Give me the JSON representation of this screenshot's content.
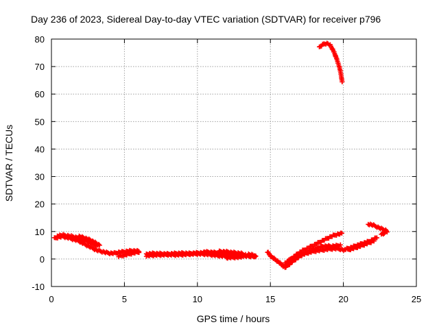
{
  "chart_data": {
    "type": "scatter",
    "title": "Day 236 of 2023, Sidereal Day-to-day VTEC variation (SDTVAR) for receiver p796",
    "xlabel": "GPS time / hours",
    "ylabel": "SDTVAR / TECUs",
    "xlim": [
      0,
      25
    ],
    "ylim": [
      -10,
      80
    ],
    "x_ticks": [
      0,
      5,
      10,
      15,
      20,
      25
    ],
    "y_ticks": [
      -10,
      0,
      10,
      20,
      30,
      40,
      50,
      60,
      70,
      80
    ],
    "grid": true,
    "marker": "+",
    "series": [
      {
        "name": "SDTVAR",
        "color": "#ff0000",
        "segments": [
          [
            [
              0.2,
              7.5
            ],
            [
              0.5,
              8.0
            ],
            [
              0.8,
              8.2
            ],
            [
              1.0,
              7.9
            ],
            [
              1.3,
              7.5
            ],
            [
              1.6,
              7.0
            ],
            [
              1.9,
              6.5
            ],
            [
              2.2,
              5.6
            ],
            [
              2.5,
              4.8
            ],
            [
              2.8,
              4.0
            ],
            [
              3.1,
              3.2
            ],
            [
              3.4,
              2.8
            ],
            [
              3.7,
              2.4
            ],
            [
              4.0,
              2.1
            ],
            [
              4.3,
              2.1
            ],
            [
              4.6,
              2.4
            ],
            [
              4.9,
              2.6
            ],
            [
              5.2,
              2.8
            ],
            [
              5.5,
              3.0
            ],
            [
              5.8,
              2.9
            ],
            [
              6.0,
              2.8
            ]
          ],
          [
            [
              0.4,
              8.5
            ],
            [
              0.8,
              8.7
            ],
            [
              1.2,
              8.4
            ],
            [
              1.6,
              8.0
            ],
            [
              2.0,
              7.4
            ],
            [
              2.4,
              6.6
            ],
            [
              2.8,
              5.6
            ],
            [
              3.1,
              4.8
            ]
          ],
          [
            [
              1.9,
              8.2
            ],
            [
              2.3,
              7.6
            ],
            [
              2.7,
              6.8
            ],
            [
              3.0,
              5.9
            ],
            [
              3.3,
              5.0
            ]
          ],
          [
            [
              4.6,
              1.0
            ],
            [
              5.0,
              1.4
            ],
            [
              5.4,
              1.9
            ],
            [
              5.8,
              2.4
            ],
            [
              6.0,
              2.6
            ]
          ],
          [
            [
              6.5,
              1.8
            ],
            [
              7.0,
              2.0
            ],
            [
              7.5,
              1.9
            ],
            [
              8.0,
              1.8
            ],
            [
              8.5,
              2.0
            ],
            [
              9.0,
              2.1
            ],
            [
              9.5,
              2.0
            ],
            [
              10.0,
              2.2
            ],
            [
              10.5,
              2.3
            ],
            [
              11.0,
              2.3
            ],
            [
              11.5,
              2.0
            ],
            [
              12.0,
              1.8
            ],
            [
              12.5,
              1.5
            ],
            [
              13.0,
              1.2
            ],
            [
              13.5,
              1.0
            ],
            [
              14.0,
              1.0
            ]
          ],
          [
            [
              6.5,
              1.2
            ],
            [
              7.0,
              1.4
            ],
            [
              7.5,
              1.5
            ],
            [
              8.0,
              1.6
            ],
            [
              8.5,
              1.5
            ],
            [
              9.0,
              1.6
            ],
            [
              9.5,
              1.8
            ],
            [
              10.0,
              1.9
            ],
            [
              10.5,
              1.8
            ],
            [
              11.0,
              1.5
            ],
            [
              11.5,
              1.2
            ],
            [
              12.0,
              1.0
            ]
          ],
          [
            [
              10.5,
              2.6
            ],
            [
              11.0,
              2.4
            ],
            [
              11.5,
              2.2
            ],
            [
              12.0,
              2.0
            ],
            [
              12.5,
              1.8
            ]
          ],
          [
            [
              11.5,
              2.7
            ],
            [
              12.0,
              2.6
            ],
            [
              12.5,
              2.3
            ],
            [
              13.0,
              2.0
            ],
            [
              13.3,
              1.5
            ]
          ],
          [
            [
              12.0,
              0.5
            ],
            [
              12.5,
              0.6
            ],
            [
              13.0,
              0.7
            ]
          ],
          [
            [
              13.5,
              1.7
            ],
            [
              13.8,
              1.4
            ],
            [
              14.0,
              0.8
            ]
          ],
          [
            [
              14.8,
              2.6
            ],
            [
              15.0,
              1.2
            ],
            [
              15.2,
              0.3
            ],
            [
              15.5,
              -0.8
            ],
            [
              15.8,
              -2.2
            ],
            [
              16.0,
              -3.1
            ],
            [
              16.2,
              -2.3
            ],
            [
              16.5,
              -1.0
            ],
            [
              16.8,
              0.2
            ],
            [
              17.1,
              1.3
            ],
            [
              17.4,
              2.2
            ],
            [
              17.7,
              3.0
            ],
            [
              18.0,
              3.6
            ],
            [
              18.3,
              4.2
            ],
            [
              18.6,
              4.6
            ],
            [
              18.9,
              4.7
            ],
            [
              19.2,
              4.6
            ],
            [
              19.5,
              4.8
            ],
            [
              19.8,
              5.0
            ]
          ],
          [
            [
              16.0,
              -1.5
            ],
            [
              16.3,
              -0.5
            ],
            [
              16.6,
              0.8
            ],
            [
              16.9,
              2.0
            ],
            [
              17.2,
              3.0
            ],
            [
              17.5,
              3.8
            ],
            [
              17.8,
              4.6
            ],
            [
              18.1,
              5.4
            ],
            [
              18.4,
              6.2
            ],
            [
              18.7,
              7.0
            ],
            [
              19.0,
              7.8
            ],
            [
              19.3,
              8.5
            ],
            [
              19.6,
              9.0
            ],
            [
              19.9,
              9.3
            ]
          ],
          [
            [
              16.2,
              -0.6
            ],
            [
              16.6,
              0.4
            ],
            [
              17.0,
              1.2
            ],
            [
              17.4,
              2.0
            ],
            [
              17.8,
              2.6
            ],
            [
              18.2,
              3.0
            ],
            [
              18.6,
              3.3
            ],
            [
              19.0,
              3.6
            ],
            [
              19.4,
              3.8
            ],
            [
              19.8,
              3.6
            ],
            [
              20.1,
              3.2
            ]
          ],
          [
            [
              20.1,
              3.5
            ],
            [
              20.5,
              4.1
            ],
            [
              20.9,
              4.9
            ],
            [
              21.3,
              5.6
            ],
            [
              21.7,
              6.3
            ],
            [
              22.0,
              7.0
            ],
            [
              22.3,
              7.8
            ]
          ],
          [
            [
              20.3,
              3.3
            ],
            [
              20.7,
              3.9
            ],
            [
              21.1,
              4.6
            ],
            [
              21.5,
              5.4
            ],
            [
              21.9,
              6.2
            ],
            [
              22.1,
              6.7
            ]
          ],
          [
            [
              21.7,
              12.7
            ],
            [
              22.0,
              12.4
            ],
            [
              22.3,
              11.7
            ],
            [
              22.6,
              11.0
            ],
            [
              22.9,
              10.5
            ],
            [
              23.0,
              10.0
            ],
            [
              22.8,
              9.4
            ],
            [
              22.6,
              9.0
            ]
          ],
          [
            [
              18.35,
              77.0
            ],
            [
              18.5,
              77.6
            ],
            [
              18.65,
              78.2
            ],
            [
              18.8,
              78.4
            ],
            [
              18.95,
              78.3
            ],
            [
              19.1,
              77.7
            ],
            [
              19.2,
              76.9
            ],
            [
              19.3,
              75.9
            ],
            [
              19.4,
              74.7
            ],
            [
              19.5,
              73.4
            ],
            [
              19.6,
              71.9
            ],
            [
              19.7,
              70.2
            ],
            [
              19.8,
              68.3
            ],
            [
              19.85,
              66.6
            ],
            [
              19.9,
              65.1
            ],
            [
              19.92,
              64.2
            ]
          ]
        ]
      }
    ]
  }
}
